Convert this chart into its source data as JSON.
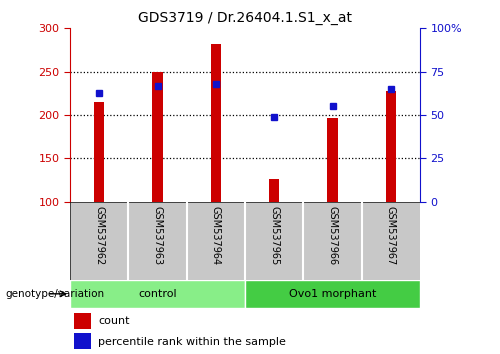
{
  "title": "GDS3719 / Dr.26404.1.S1_x_at",
  "samples": [
    "GSM537962",
    "GSM537963",
    "GSM537964",
    "GSM537965",
    "GSM537966",
    "GSM537967"
  ],
  "counts": [
    215,
    250,
    282,
    126,
    197,
    228
  ],
  "percentile_ranks": [
    63,
    67,
    68,
    49,
    55,
    65
  ],
  "ymin": 100,
  "ymax": 300,
  "yticks_left": [
    100,
    150,
    200,
    250,
    300
  ],
  "yticks_right": [
    0,
    25,
    50,
    75,
    100
  ],
  "bar_color": "#cc0000",
  "dot_color": "#1111cc",
  "bar_width": 0.18,
  "groups": [
    {
      "label": "control",
      "span": [
        0,
        2
      ],
      "color": "#88ee88"
    },
    {
      "label": "Ovo1 morphant",
      "span": [
        3,
        5
      ],
      "color": "#44cc44"
    }
  ],
  "group_label": "genotype/variation",
  "legend_count_label": "count",
  "legend_pct_label": "percentile rank within the sample",
  "grid_color": "black",
  "tick_color_left": "#cc0000",
  "tick_color_right": "#1111cc",
  "bg_plot": "#ffffff",
  "bg_xlabels": "#c8c8c8",
  "bg_fig": "#ffffff"
}
